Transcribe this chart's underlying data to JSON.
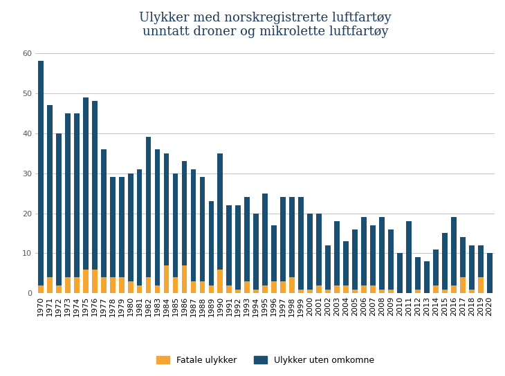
{
  "title": "Ulykker med norskregistrerte luftfartøy\nunntatt droner og mikrolette luftfartøy",
  "years": [
    1970,
    1971,
    1972,
    1973,
    1974,
    1975,
    1976,
    1977,
    1978,
    1979,
    1980,
    1981,
    1982,
    1983,
    1984,
    1985,
    1986,
    1987,
    1988,
    1989,
    1990,
    1991,
    1992,
    1993,
    1994,
    1995,
    1996,
    1997,
    1998,
    1999,
    2000,
    2001,
    2002,
    2003,
    2004,
    2005,
    2006,
    2007,
    2008,
    2009,
    2010,
    2011,
    2012,
    2013,
    2014,
    2015,
    2016,
    2017,
    2018,
    2019,
    2020
  ],
  "fatal": [
    2,
    4,
    2,
    4,
    4,
    6,
    6,
    4,
    4,
    4,
    3,
    2,
    4,
    2,
    7,
    4,
    7,
    3,
    3,
    2,
    6,
    2,
    1,
    3,
    1,
    2,
    3,
    3,
    4,
    1,
    1,
    2,
    1,
    2,
    2,
    1,
    2,
    2,
    1,
    1,
    0,
    0,
    1,
    0,
    2,
    1,
    2,
    4,
    1,
    4,
    0
  ],
  "non_fatal": [
    56,
    43,
    38,
    41,
    41,
    43,
    42,
    32,
    25,
    25,
    27,
    29,
    35,
    34,
    28,
    26,
    26,
    28,
    26,
    21,
    29,
    20,
    21,
    21,
    19,
    23,
    14,
    21,
    20,
    23,
    19,
    18,
    11,
    16,
    11,
    15,
    17,
    15,
    18,
    15,
    10,
    18,
    8,
    8,
    9,
    14,
    17,
    10,
    11,
    8,
    10
  ],
  "color_fatal": "#f4a532",
  "color_non_fatal": "#1a4f72",
  "legend_fatal": "Fatale ulykker",
  "legend_non_fatal": "Ulykker uten omkomne",
  "title_color": "#1a3a5c",
  "ylim": [
    0,
    62
  ],
  "yticks": [
    0,
    10,
    20,
    30,
    40,
    50,
    60
  ],
  "background_color": "#ffffff",
  "grid_color": "#c8c8c8",
  "title_fontsize": 13,
  "axis_fontsize": 8
}
